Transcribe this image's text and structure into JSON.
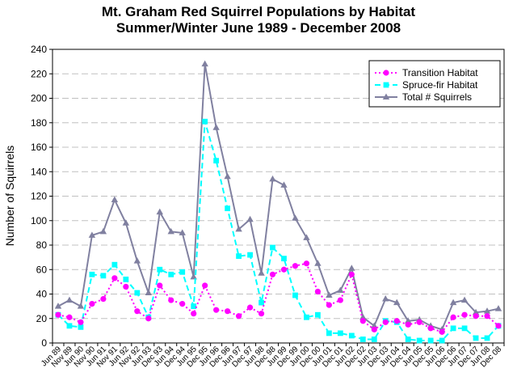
{
  "chart_data": {
    "type": "line",
    "title": "Mt. Graham Red Squirrel Populations by Habitat",
    "subtitle": "Summer/Winter   June 1989 - December 2008",
    "xlabel": "",
    "ylabel": "Number of Squirrels",
    "ylim": [
      0,
      240
    ],
    "yticks": [
      0,
      20,
      40,
      60,
      80,
      100,
      120,
      140,
      160,
      180,
      200,
      220,
      240
    ],
    "grid": true,
    "legend_position": "top-right",
    "x_tick_labels": [
      "Jun 89",
      "Nov 89",
      "Jun 90",
      "Nov 90",
      "Jun 91",
      "Nov 91",
      "Jun 92",
      "Nov 92",
      "Jun 93",
      "Dec 93",
      "Jun 94",
      "Dec 94",
      "Jun 95",
      "Dec 95",
      "Jun 96",
      "Dec 96",
      "Jun 97",
      "Dec 97",
      "Jun 98",
      "Dec 98",
      "Jun 99",
      "Dec 99",
      "Jun 00",
      "Dec 00",
      "Jun 01",
      "Dec 01",
      "Jun 02",
      "Dec 02",
      "Jun 03",
      "Dec 03",
      "Jun 04",
      "Dec 04",
      "Jun 05",
      "Dec 05",
      "Jun 06",
      "Dec 06",
      "Jun 07",
      "Dec 07",
      "Jun 08",
      "Dec 08"
    ],
    "series": [
      {
        "name": "Transition Habitat",
        "color": "#ff00ff",
        "marker": "circle",
        "line": "dotted",
        "values": [
          23,
          21,
          17,
          32,
          36,
          53,
          46,
          26,
          20,
          47,
          35,
          32,
          24,
          47,
          27,
          26,
          22,
          29,
          24,
          56,
          60,
          63,
          65,
          42,
          31,
          35,
          56,
          18,
          11,
          17,
          18,
          15,
          17,
          12,
          9,
          21,
          23,
          22,
          22,
          14
        ]
      },
      {
        "name": "Spruce-fir Habitat",
        "color": "#00ffff",
        "marker": "square",
        "line": "dashed",
        "values": [
          23,
          14,
          13,
          56,
          55,
          64,
          52,
          41,
          21,
          60,
          56,
          58,
          30,
          181,
          149,
          110,
          71,
          72,
          33,
          78,
          69,
          39,
          21,
          23,
          8,
          8,
          6,
          3,
          3,
          18,
          17,
          3,
          2,
          2,
          2,
          12,
          12,
          4,
          4,
          14
        ]
      },
      {
        "name": "Total # Squirrels",
        "color": "#8080a0",
        "marker": "triangle",
        "line": "solid",
        "values": [
          30,
          35,
          30,
          88,
          91,
          117,
          98,
          67,
          41,
          107,
          91,
          90,
          54,
          228,
          176,
          136,
          93,
          101,
          57,
          134,
          129,
          102,
          86,
          65,
          39,
          43,
          61,
          21,
          14,
          36,
          33,
          18,
          19,
          14,
          11,
          33,
          35,
          25,
          26,
          28
        ]
      }
    ]
  }
}
